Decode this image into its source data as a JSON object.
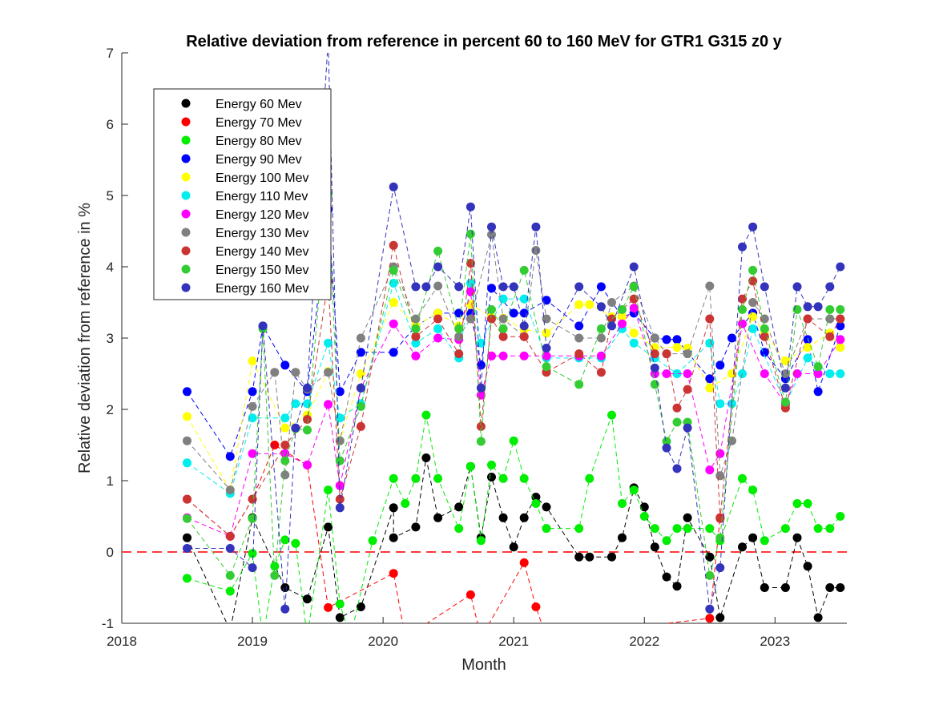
{
  "chart_data": {
    "type": "line",
    "title": "Relative deviation from reference in percent 60 to 160 MeV for GTR1 G315 z0 y",
    "xlabel": "Month",
    "ylabel": "Relative deviation from reference in %",
    "xlim": [
      2018.0,
      2023.55
    ],
    "ylim": [
      -1,
      7
    ],
    "xticks": [
      2018,
      2019,
      2020,
      2021,
      2022,
      2023
    ],
    "yticks": [
      -1,
      0,
      1,
      2,
      3,
      4,
      5,
      6,
      7
    ],
    "reference_line": {
      "y": 0,
      "color": "#ff3b3b",
      "style": "dashed"
    },
    "legend_position": "top-left",
    "series": [
      {
        "name": "Energy 60 Mev",
        "color": "#000000",
        "x": [
          2018.5,
          2018.83,
          2019.0,
          2019.25,
          2019.42,
          2019.58,
          2019.67,
          2019.83,
          2020.08,
          2020.08,
          2020.25,
          2020.33,
          2020.42,
          2020.58,
          2020.67,
          2020.75,
          2020.83,
          2020.92,
          2021.0,
          2021.08,
          2021.17,
          2021.25,
          2021.5,
          2021.58,
          2021.75,
          2021.83,
          2021.92,
          2022.0,
          2022.08,
          2022.17,
          2022.25,
          2022.33,
          2022.5,
          2022.58,
          2022.75,
          2022.83,
          2022.92,
          2023.08,
          2023.17,
          2023.25,
          2023.33,
          2023.42,
          2023.5
        ],
        "y": [
          0.2,
          -1.1,
          0.48,
          -0.5,
          -0.66,
          0.35,
          -0.92,
          -0.77,
          0.62,
          0.2,
          0.35,
          1.32,
          0.48,
          0.63,
          1.2,
          0.2,
          1.05,
          0.48,
          0.07,
          0.48,
          0.77,
          0.63,
          -0.07,
          -0.07,
          -0.07,
          0.2,
          0.9,
          0.63,
          0.07,
          -0.35,
          -0.48,
          0.48,
          -0.07,
          -0.92,
          0.07,
          0.2,
          -0.5,
          -0.5,
          0.2,
          -0.2,
          -0.92,
          -0.5,
          -0.5
        ]
      },
      {
        "name": "Energy 70 Mev",
        "color": "#ff0000",
        "x": [
          2018.5,
          2018.83,
          2019.0,
          2019.17,
          2019.42,
          2019.58,
          2020.08,
          2020.17,
          2020.67,
          2020.75,
          2021.08,
          2021.17,
          2021.25,
          2022.5,
          2022.58
        ],
        "y": [
          0.74,
          0.22,
          0.74,
          1.5,
          1.22,
          -0.78,
          -0.3,
          -1.2,
          -0.6,
          -1.2,
          -0.15,
          -0.77,
          -1.2,
          -0.93,
          0.48
        ]
      },
      {
        "name": "Energy 80 Mev",
        "color": "#00ee00",
        "x": [
          2018.5,
          2018.83,
          2019.0,
          2019.08,
          2019.17,
          2019.25,
          2019.33,
          2019.42,
          2019.58,
          2019.67,
          2019.75,
          2019.92,
          2020.08,
          2020.17,
          2020.25,
          2020.33,
          2020.42,
          2020.58,
          2020.67,
          2020.75,
          2020.83,
          2020.92,
          2021.0,
          2021.08,
          2021.17,
          2021.25,
          2021.5,
          2021.58,
          2021.75,
          2021.83,
          2021.92,
          2022.0,
          2022.08,
          2022.17,
          2022.25,
          2022.33,
          2022.5,
          2022.58,
          2022.75,
          2022.83,
          2022.92,
          2023.08,
          2023.17,
          2023.25,
          2023.33,
          2023.42,
          2023.5
        ],
        "y": [
          -0.37,
          -0.55,
          -0.02,
          -1.2,
          -0.2,
          0.17,
          0.12,
          -1.2,
          0.87,
          -0.73,
          -1.2,
          0.16,
          1.03,
          0.68,
          1.03,
          1.92,
          1.03,
          0.33,
          1.2,
          0.16,
          1.22,
          1.03,
          1.56,
          1.03,
          0.68,
          0.33,
          0.33,
          1.03,
          1.92,
          0.68,
          0.87,
          0.5,
          0.33,
          0.16,
          0.33,
          0.33,
          0.33,
          0.16,
          1.03,
          0.87,
          0.16,
          0.33,
          0.68,
          0.68,
          0.33,
          0.33,
          0.5
        ]
      },
      {
        "name": "Energy 90 Mev",
        "color": "#0000ff",
        "x": [
          2018.5,
          2018.83,
          2019.0,
          2019.08,
          2019.25,
          2019.42,
          2019.58,
          2019.67,
          2019.83,
          2020.08,
          2020.25,
          2020.42,
          2020.58,
          2020.67,
          2020.75,
          2020.83,
          2021.0,
          2021.08,
          2021.25,
          2021.5,
          2021.67,
          2021.83,
          2021.92,
          2022.08,
          2022.17,
          2022.25,
          2022.33,
          2022.5,
          2022.58,
          2022.67,
          2022.83,
          2022.92,
          2023.08,
          2023.25,
          2023.33,
          2023.5
        ],
        "y": [
          2.25,
          1.34,
          2.25,
          3.17,
          2.62,
          2.25,
          4.8,
          2.25,
          2.8,
          2.8,
          3.17,
          3.35,
          3.35,
          3.35,
          2.62,
          3.7,
          3.35,
          3.35,
          3.53,
          3.17,
          3.72,
          3.3,
          3.35,
          3.0,
          2.98,
          2.98,
          2.8,
          2.43,
          2.62,
          3.0,
          3.35,
          2.8,
          2.43,
          2.98,
          2.25,
          3.17
        ]
      },
      {
        "name": "Energy 100 Mev",
        "color": "#ffff00",
        "x": [
          2018.5,
          2018.83,
          2019.0,
          2019.25,
          2019.42,
          2019.58,
          2019.67,
          2019.83,
          2020.08,
          2020.25,
          2020.42,
          2020.58,
          2020.67,
          2020.83,
          2020.92,
          2021.08,
          2021.25,
          2021.5,
          2021.58,
          2021.75,
          2021.83,
          2021.92,
          2022.08,
          2022.25,
          2022.33,
          2022.5,
          2022.67,
          2022.83,
          2022.92,
          2023.08,
          2023.25,
          2023.42,
          2023.5
        ],
        "y": [
          1.9,
          0.87,
          2.68,
          1.74,
          1.92,
          2.53,
          1.56,
          2.5,
          3.5,
          3.17,
          3.35,
          3.17,
          3.47,
          3.3,
          3.28,
          3.12,
          3.07,
          3.47,
          3.47,
          3.3,
          3.3,
          3.07,
          2.87,
          2.87,
          2.86,
          2.3,
          2.5,
          3.3,
          3.07,
          2.68,
          2.87,
          3.07,
          2.87
        ]
      },
      {
        "name": "Energy 110 Mev",
        "color": "#00eeee",
        "x": [
          2018.5,
          2018.83,
          2019.0,
          2019.25,
          2019.33,
          2019.42,
          2019.58,
          2019.67,
          2019.83,
          2020.08,
          2020.25,
          2020.42,
          2020.58,
          2020.67,
          2020.75,
          2020.92,
          2021.08,
          2021.25,
          2021.5,
          2021.67,
          2021.83,
          2021.92,
          2022.08,
          2022.25,
          2022.5,
          2022.58,
          2022.67,
          2022.75,
          2022.83,
          2023.08,
          2023.25,
          2023.42,
          2023.5
        ],
        "y": [
          1.25,
          0.82,
          1.88,
          1.88,
          2.08,
          2.08,
          2.93,
          1.88,
          2.08,
          3.77,
          2.93,
          3.13,
          2.72,
          3.77,
          2.93,
          3.55,
          3.55,
          2.72,
          2.72,
          2.72,
          3.13,
          2.93,
          2.72,
          2.5,
          2.93,
          2.08,
          2.08,
          2.5,
          3.13,
          2.08,
          2.72,
          2.5,
          2.5
        ]
      },
      {
        "name": "Energy 120 Mev",
        "color": "#ff00ff",
        "x": [
          2018.5,
          2018.83,
          2019.0,
          2019.25,
          2019.42,
          2019.58,
          2019.67,
          2019.83,
          2020.08,
          2020.25,
          2020.42,
          2020.58,
          2020.67,
          2020.75,
          2020.83,
          2020.92,
          2021.08,
          2021.25,
          2021.5,
          2021.67,
          2021.83,
          2021.92,
          2022.08,
          2022.17,
          2022.33,
          2022.5,
          2022.58,
          2022.75,
          2022.92,
          2023.08,
          2023.17,
          2023.33,
          2023.5
        ],
        "y": [
          0.48,
          0.22,
          1.38,
          1.38,
          1.22,
          2.07,
          0.93,
          2.3,
          3.2,
          2.75,
          3.0,
          2.98,
          3.65,
          2.2,
          2.75,
          2.75,
          2.75,
          2.75,
          2.75,
          2.75,
          3.2,
          3.42,
          2.5,
          2.5,
          2.5,
          1.15,
          1.38,
          3.2,
          2.5,
          2.07,
          2.5,
          2.5,
          2.98
        ]
      },
      {
        "name": "Energy 130 Mev",
        "color": "#808080",
        "x": [
          2018.5,
          2018.83,
          2019.0,
          2019.17,
          2019.25,
          2019.33,
          2019.42,
          2019.58,
          2019.67,
          2019.83,
          2020.08,
          2020.25,
          2020.42,
          2020.58,
          2020.67,
          2020.83,
          2020.92,
          2021.08,
          2021.17,
          2021.25,
          2021.5,
          2021.67,
          2021.75,
          2021.92,
          2022.08,
          2022.17,
          2022.33,
          2022.5,
          2022.58,
          2022.67,
          2022.83,
          2022.92,
          2023.08,
          2023.25,
          2023.42,
          2023.5
        ],
        "y": [
          1.56,
          0.87,
          2.04,
          2.52,
          1.08,
          2.52,
          2.28,
          2.52,
          1.56,
          3.0,
          4.0,
          3.27,
          3.73,
          3.02,
          3.27,
          4.45,
          3.27,
          3.02,
          4.23,
          3.27,
          3.0,
          3.0,
          3.5,
          3.73,
          3.0,
          2.78,
          2.78,
          3.73,
          1.07,
          1.56,
          3.5,
          3.27,
          2.5,
          3.27,
          3.27,
          3.27
        ]
      },
      {
        "name": "Energy 140 Mev",
        "color": "#cc3333",
        "x": [
          2018.5,
          2018.83,
          2019.0,
          2019.25,
          2019.42,
          2019.58,
          2019.67,
          2019.83,
          2020.08,
          2020.25,
          2020.42,
          2020.58,
          2020.67,
          2020.75,
          2020.83,
          2020.92,
          2021.08,
          2021.25,
          2021.5,
          2021.67,
          2021.75,
          2021.92,
          2022.08,
          2022.17,
          2022.25,
          2022.33,
          2022.5,
          2022.58,
          2022.75,
          2022.83,
          2022.92,
          2023.08,
          2023.25,
          2023.42,
          2023.5
        ],
        "y": [
          0.74,
          0.22,
          0.74,
          1.5,
          1.86,
          3.8,
          0.74,
          1.76,
          4.3,
          3.02,
          3.27,
          2.78,
          4.05,
          1.76,
          3.27,
          3.02,
          3.02,
          2.52,
          2.78,
          2.52,
          3.27,
          3.55,
          2.78,
          2.78,
          2.02,
          2.28,
          3.27,
          0.47,
          3.55,
          3.8,
          3.02,
          2.02,
          3.27,
          3.02,
          3.27
        ]
      },
      {
        "name": "Energy 150 Mev",
        "color": "#33cc33",
        "x": [
          2018.5,
          2018.83,
          2019.0,
          2019.08,
          2019.17,
          2019.25,
          2019.33,
          2019.42,
          2019.58,
          2019.67,
          2019.83,
          2020.08,
          2020.25,
          2020.42,
          2020.58,
          2020.67,
          2020.75,
          2020.83,
          2020.92,
          2021.08,
          2021.25,
          2021.5,
          2021.67,
          2021.83,
          2021.92,
          2022.08,
          2022.17,
          2022.25,
          2022.33,
          2022.5,
          2022.58,
          2022.75,
          2022.83,
          2022.92,
          2023.08,
          2023.17,
          2023.33,
          2023.42,
          2023.5
        ],
        "y": [
          0.47,
          -0.33,
          0.47,
          3.13,
          -0.33,
          1.28,
          1.73,
          1.71,
          5.02,
          1.28,
          2.04,
          3.95,
          3.13,
          4.22,
          3.13,
          4.46,
          1.55,
          3.4,
          3.13,
          3.95,
          2.6,
          2.35,
          3.13,
          3.4,
          3.72,
          2.35,
          1.55,
          1.82,
          1.82,
          -0.33,
          0.2,
          3.4,
          3.95,
          3.13,
          2.1,
          3.4,
          2.6,
          3.4,
          3.4
        ]
      },
      {
        "name": "Energy 160 Mev",
        "color": "#3333bb",
        "x": [
          2018.5,
          2018.83,
          2019.0,
          2019.08,
          2019.25,
          2019.33,
          2019.42,
          2019.58,
          2019.67,
          2019.83,
          2020.08,
          2020.25,
          2020.33,
          2020.42,
          2020.58,
          2020.67,
          2020.75,
          2020.83,
          2020.92,
          2021.0,
          2021.08,
          2021.17,
          2021.25,
          2021.5,
          2021.67,
          2021.75,
          2021.92,
          2022.08,
          2022.17,
          2022.25,
          2022.33,
          2022.5,
          2022.58,
          2022.75,
          2022.83,
          2022.92,
          2023.08,
          2023.17,
          2023.25,
          2023.33,
          2023.42,
          2023.5
        ],
        "y": [
          0.05,
          0.05,
          -0.22,
          3.17,
          -0.8,
          1.74,
          2.3,
          7.2,
          0.62,
          2.3,
          5.12,
          3.72,
          3.72,
          4.0,
          3.72,
          4.84,
          2.3,
          4.56,
          3.72,
          3.72,
          3.17,
          4.56,
          2.86,
          3.72,
          3.44,
          3.17,
          4.0,
          2.58,
          1.46,
          1.17,
          1.74,
          -0.8,
          -0.22,
          4.28,
          4.56,
          3.72,
          2.3,
          3.72,
          3.44,
          3.44,
          3.72,
          4.0
        ]
      }
    ]
  }
}
